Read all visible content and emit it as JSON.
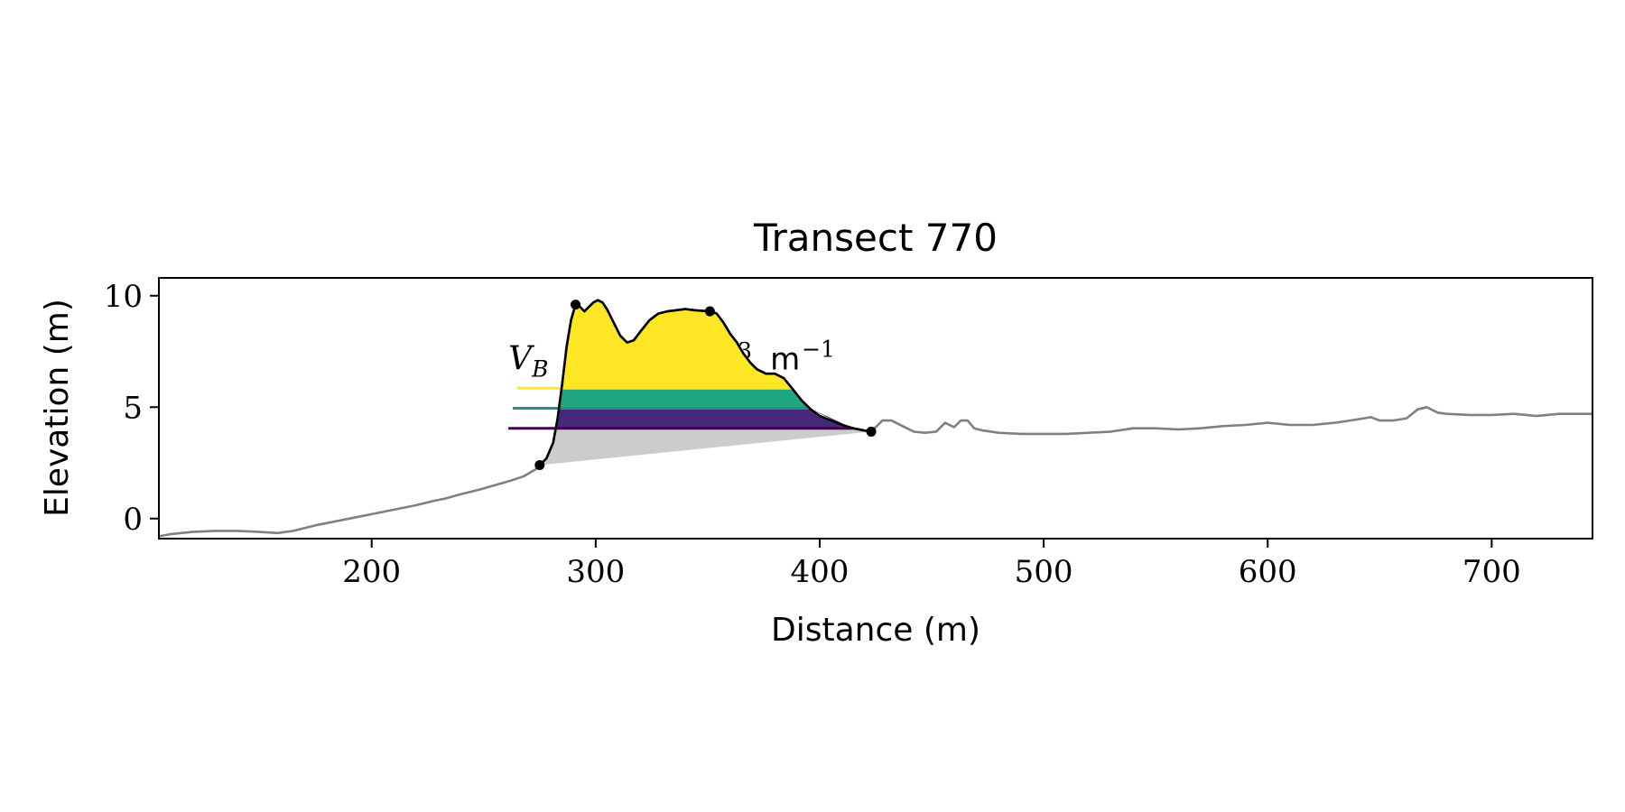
{
  "chart_data": {
    "type": "area",
    "title": "Transect 770",
    "xlabel": "Distance (m)",
    "ylabel": "Elevation (m)",
    "xlim": [
      105,
      745
    ],
    "ylim": [
      -0.9,
      10.8
    ],
    "x_ticks": [
      200,
      300,
      400,
      500,
      600,
      700
    ],
    "y_ticks": [
      0,
      5,
      10
    ],
    "x_tick_labels": [
      "200",
      "300",
      "400",
      "500",
      "600",
      "700"
    ],
    "y_tick_labels": [
      "0",
      "5",
      "10"
    ],
    "grid": false,
    "legend": false,
    "annotation": {
      "symbol": "V",
      "subscript": "B",
      "fragment_1": "3",
      "fragment_2": "m",
      "fragment_3": "−1",
      "x": 261,
      "y": 6.7
    },
    "profile_color": "#808080",
    "dune_outline_color": "#000000",
    "base_fill_color": "#cccccc",
    "band_colors": [
      "#fde725",
      "#21a685",
      "#482878"
    ],
    "bands": [
      {
        "level": 5.85,
        "color": "#fde725",
        "line_start": 265
      },
      {
        "level": 4.95,
        "color": "#21918c",
        "line_start": 263
      },
      {
        "level": 4.05,
        "color": "#440154",
        "line_start": 261
      }
    ],
    "key_points": [
      {
        "x": 275,
        "y": 2.4
      },
      {
        "x": 291,
        "y": 9.6
      },
      {
        "x": 351,
        "y": 9.3
      },
      {
        "x": 423,
        "y": 3.9
      }
    ],
    "dune_profile": {
      "x": [
        275,
        278,
        281,
        283,
        285,
        287,
        289,
        291,
        293,
        295,
        297,
        299,
        301,
        303,
        305,
        308,
        311,
        314,
        317,
        320,
        324,
        328,
        332,
        336,
        340,
        344,
        348,
        351,
        354,
        357,
        360,
        363,
        366,
        369,
        372,
        376,
        380,
        384,
        388,
        392,
        396,
        400,
        405,
        410,
        415,
        420,
        423
      ],
      "y": [
        2.4,
        2.7,
        3.4,
        4.5,
        6.0,
        7.7,
        8.9,
        9.6,
        9.5,
        9.3,
        9.5,
        9.7,
        9.8,
        9.7,
        9.4,
        8.8,
        8.2,
        7.9,
        8.0,
        8.4,
        8.9,
        9.2,
        9.3,
        9.35,
        9.4,
        9.35,
        9.32,
        9.3,
        9.2,
        8.8,
        8.3,
        7.9,
        7.4,
        7.0,
        6.7,
        6.5,
        6.5,
        6.3,
        5.8,
        5.3,
        4.9,
        4.6,
        4.4,
        4.2,
        4.05,
        3.95,
        3.9
      ]
    },
    "full_profile": {
      "x": [
        105,
        110,
        120,
        130,
        140,
        150,
        158,
        165,
        175,
        190,
        205,
        220,
        228,
        233,
        240,
        248,
        255,
        262,
        268,
        273,
        275,
        278,
        281,
        283,
        285,
        287,
        289,
        291,
        293,
        295,
        297,
        299,
        301,
        303,
        305,
        308,
        311,
        314,
        317,
        320,
        324,
        328,
        332,
        336,
        340,
        344,
        348,
        351,
        354,
        357,
        360,
        363,
        366,
        369,
        372,
        376,
        380,
        384,
        388,
        392,
        396,
        400,
        405,
        410,
        415,
        420,
        423,
        428,
        432,
        437,
        442,
        447,
        452,
        456,
        460,
        463,
        466,
        469,
        473,
        480,
        490,
        500,
        510,
        520,
        530,
        540,
        550,
        560,
        570,
        580,
        590,
        600,
        610,
        620,
        630,
        640,
        646,
        650,
        656,
        662,
        667,
        671,
        676,
        680,
        690,
        700,
        710,
        720,
        730,
        745
      ],
      "y": [
        -0.8,
        -0.7,
        -0.6,
        -0.55,
        -0.55,
        -0.6,
        -0.65,
        -0.55,
        -0.3,
        0.0,
        0.3,
        0.6,
        0.8,
        0.9,
        1.1,
        1.3,
        1.5,
        1.7,
        1.9,
        2.2,
        2.4,
        2.7,
        3.4,
        4.5,
        6.0,
        7.7,
        8.9,
        9.6,
        9.5,
        9.3,
        9.5,
        9.7,
        9.8,
        9.7,
        9.4,
        8.8,
        8.2,
        7.9,
        8.0,
        8.4,
        8.9,
        9.2,
        9.3,
        9.35,
        9.4,
        9.35,
        9.32,
        9.3,
        9.2,
        8.8,
        8.3,
        7.9,
        7.4,
        7.0,
        6.7,
        6.5,
        6.5,
        6.3,
        5.8,
        5.3,
        4.9,
        4.6,
        4.4,
        4.2,
        4.05,
        3.95,
        3.9,
        4.4,
        4.4,
        4.15,
        3.9,
        3.85,
        3.9,
        4.3,
        4.1,
        4.4,
        4.4,
        4.05,
        3.95,
        3.85,
        3.8,
        3.8,
        3.8,
        3.85,
        3.9,
        4.05,
        4.05,
        4.0,
        4.05,
        4.15,
        4.2,
        4.3,
        4.2,
        4.2,
        4.3,
        4.45,
        4.55,
        4.4,
        4.4,
        4.5,
        4.9,
        5.0,
        4.75,
        4.7,
        4.65,
        4.65,
        4.7,
        4.6,
        4.7,
        4.7
      ]
    }
  }
}
